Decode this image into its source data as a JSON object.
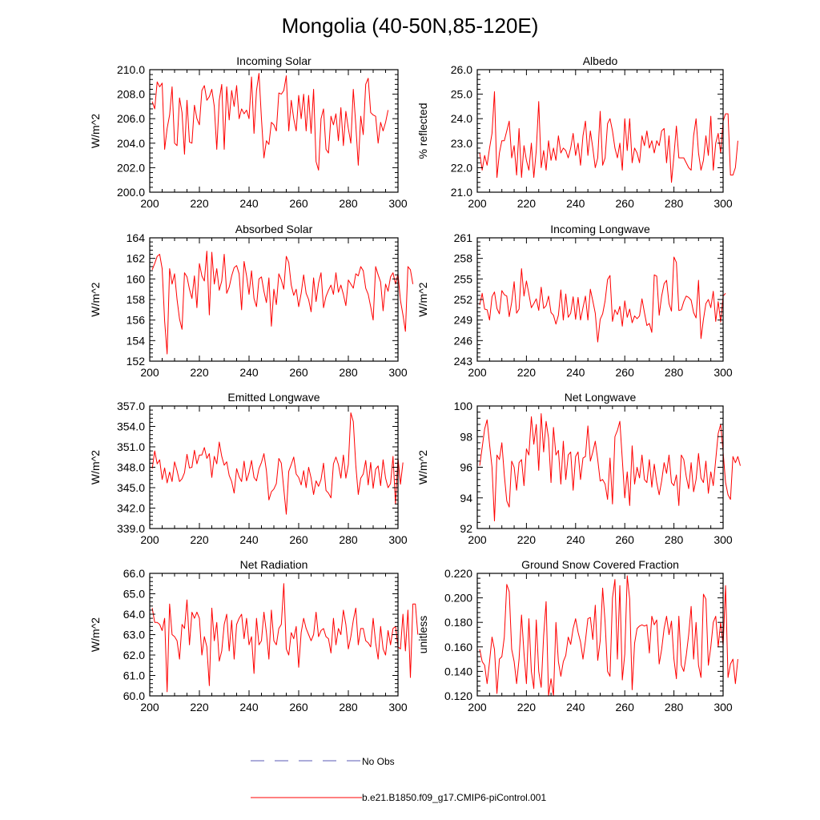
{
  "title": "Mongolia (40-50N,85-120E)",
  "legend": {
    "obs_label": "No Obs",
    "obs_color": "#5a5ab4",
    "model_label": "b.e21.B1850.f09_g17.CMIP6-piControl.001",
    "model_color": "#ff0000"
  },
  "chart_data": [
    {
      "type": "line",
      "title": "Incoming Solar",
      "ylabel": "W/m^2",
      "xlim": [
        200,
        300
      ],
      "ylim": [
        200,
        210
      ],
      "xticks": [
        200,
        220,
        240,
        260,
        280,
        300
      ],
      "yticks": [
        200,
        202,
        204,
        206,
        208,
        210
      ],
      "ytick_labels": [
        "200.0",
        "202.0",
        "204.0",
        "206.0",
        "208.0",
        "210.0"
      ],
      "x_start": 201,
      "values": [
        207.4,
        206.8,
        209.0,
        208.6,
        208.9,
        203.5,
        205.2,
        206.3,
        208.6,
        204.0,
        203.8,
        207.7,
        206.5,
        203.1,
        207.5,
        204.1,
        204.0,
        207.1,
        206.0,
        205.5,
        208.3,
        208.7,
        207.5,
        207.8,
        208.4,
        207.0,
        203.5,
        207.5,
        208.8,
        203.5,
        208.6,
        205.9,
        208.3,
        207.0,
        208.7,
        206.0,
        206.8,
        206.4,
        206.7,
        206.0,
        209.4,
        204.8,
        208.3,
        209.7,
        206.0,
        202.8,
        204.2,
        203.9,
        205.7,
        205.5,
        205.0,
        208.1,
        208.0,
        208.3,
        209.5,
        205.0,
        207.5,
        206.0,
        205.0,
        207.9,
        206.0,
        208.0,
        205.0,
        207.9,
        204.8,
        208.4,
        202.5,
        201.8,
        206.0,
        206.8,
        203.5,
        203.2,
        206.2,
        205.5,
        206.4,
        204.2,
        206.9,
        203.8,
        206.6,
        205.2,
        204.0,
        208.4,
        205.5,
        202.2,
        206.2,
        204.7,
        208.8,
        209.3,
        206.5,
        206.3,
        206.2,
        204.0,
        205.7,
        205.0,
        205.7,
        206.7
      ]
    },
    {
      "type": "line",
      "title": "Albedo",
      "ylabel": "% reflected",
      "xlim": [
        200,
        300
      ],
      "ylim": [
        21,
        26
      ],
      "xticks": [
        200,
        220,
        240,
        260,
        280,
        300
      ],
      "yticks": [
        21,
        22,
        23,
        24,
        25,
        26
      ],
      "ytick_labels": [
        "21.0",
        "22.0",
        "23.0",
        "24.0",
        "25.0",
        "26.0"
      ],
      "x_start": 201,
      "values": [
        22.6,
        21.9,
        22.5,
        22.1,
        22.8,
        23.4,
        25.1,
        21.6,
        22.6,
        23.1,
        23.1,
        23.5,
        23.9,
        22.4,
        22.9,
        21.7,
        23.6,
        21.6,
        22.9,
        22.3,
        21.9,
        23.0,
        21.6,
        22.7,
        24.7,
        22.0,
        22.7,
        21.9,
        23.1,
        22.3,
        22.8,
        22.3,
        23.3,
        22.6,
        22.8,
        22.7,
        22.4,
        22.8,
        23.4,
        22.5,
        23.0,
        22.1,
        23.3,
        23.9,
        22.5,
        23.5,
        22.8,
        22.0,
        22.4,
        24.3,
        22.1,
        22.4,
        23.8,
        24.0,
        23.5,
        22.8,
        22.4,
        23.0,
        21.9,
        24.0,
        22.7,
        24.0,
        22.2,
        22.8,
        22.6,
        22.2,
        23.3,
        22.9,
        23.5,
        22.8,
        23.1,
        22.6,
        23.1,
        22.9,
        23.5,
        23.6,
        22.2,
        23.3,
        21.4,
        22.5,
        23.7,
        22.4,
        22.4,
        22.4,
        22.2,
        22.0,
        21.9,
        23.3,
        24.0,
        22.6,
        21.9,
        22.3,
        23.3,
        22.5,
        24.1,
        21.9,
        23.0,
        23.4,
        22.6,
        23.9,
        24.2,
        24.2,
        21.7,
        21.7,
        22.0,
        23.1
      ]
    },
    {
      "type": "line",
      "title": "Absorbed Solar",
      "ylabel": "W/m^2",
      "xlim": [
        200,
        300
      ],
      "ylim": [
        152,
        164
      ],
      "xticks": [
        200,
        220,
        240,
        260,
        280,
        300
      ],
      "yticks": [
        152,
        154,
        156,
        158,
        160,
        162,
        164
      ],
      "ytick_labels": [
        "152",
        "154",
        "156",
        "158",
        "160",
        "162",
        "164"
      ],
      "x_start": 201,
      "values": [
        160.9,
        161.5,
        162.2,
        162.4,
        161.0,
        155.9,
        152.7,
        161.0,
        159.5,
        160.5,
        158.0,
        156.1,
        155.1,
        160.6,
        160.2,
        159.0,
        158.1,
        160.3,
        157.2,
        161.5,
        160.3,
        159.8,
        162.7,
        156.5,
        162.6,
        159.5,
        161.0,
        158.9,
        159.8,
        162.4,
        158.6,
        159.2,
        160.3,
        161.1,
        161.3,
        160.5,
        157.0,
        161.7,
        160.3,
        158.5,
        160.8,
        158.1,
        157.3,
        160.0,
        160.2,
        158.8,
        157.7,
        160.1,
        155.4,
        159.0,
        157.5,
        160.5,
        159.9,
        159.0,
        162.2,
        161.6,
        159.4,
        158.4,
        159.0,
        157.3,
        158.6,
        160.4,
        158.6,
        158.0,
        156.8,
        160.1,
        157.8,
        159.6,
        160.6,
        157.2,
        158.3,
        158.9,
        159.4,
        158.5,
        160.6,
        158.7,
        159.4,
        158.5,
        157.4,
        159.9,
        159.5,
        159.1,
        160.5,
        160.3,
        161.2,
        160.8,
        159.1,
        158.5,
        157.3,
        156.0,
        161.2,
        160.4,
        159.7,
        156.9,
        159.5,
        158.8,
        160.2,
        160.6,
        159.5,
        160.5,
        157.9,
        156.5,
        154.9,
        161.2,
        160.9,
        159.5
      ]
    },
    {
      "type": "line",
      "title": "Incoming Longwave",
      "ylabel": "W/m^2",
      "xlim": [
        200,
        300
      ],
      "ylim": [
        243,
        261
      ],
      "xticks": [
        200,
        220,
        240,
        260,
        280,
        300
      ],
      "yticks": [
        243,
        246,
        249,
        252,
        255,
        258,
        261
      ],
      "ytick_labels": [
        "243",
        "246",
        "249",
        "252",
        "255",
        "258",
        "261"
      ],
      "x_start": 201,
      "values": [
        251.2,
        252.9,
        250.6,
        250.5,
        249.0,
        252.4,
        253.1,
        250.7,
        249.9,
        253.3,
        252.7,
        252.5,
        249.5,
        251.6,
        254.6,
        250.0,
        250.6,
        256.5,
        252.5,
        254.7,
        252.8,
        250.8,
        251.4,
        252.1,
        250.4,
        253.8,
        250.7,
        251.1,
        252.5,
        250.1,
        249.7,
        248.4,
        249.7,
        253.4,
        249.0,
        252.8,
        249.4,
        250.0,
        252.4,
        249.1,
        252.3,
        249.0,
        250.8,
        252.5,
        249.0,
        253.5,
        251.8,
        250.0,
        245.8,
        249.1,
        249.9,
        251.8,
        254.9,
        255.5,
        248.8,
        250.5,
        249.8,
        251.0,
        248.1,
        251.8,
        249.4,
        250.6,
        248.6,
        249.6,
        249.2,
        249.6,
        252.1,
        250.1,
        248.2,
        248.5,
        247.2,
        255.6,
        255.4,
        249.7,
        252.5,
        254.3,
        254.8,
        251.4,
        250.3,
        258.2,
        257.4,
        250.4,
        250.5,
        251.7,
        252.5,
        252.3,
        251.9,
        250.1,
        249.3,
        254.8,
        246.3,
        249.1,
        251.4,
        252.0,
        250.8,
        253.2,
        248.8,
        251.7,
        248.7,
        252.5,
        252.9
      ]
    },
    {
      "type": "line",
      "title": "Emitted Longwave",
      "ylabel": "W/m^2",
      "xlim": [
        200,
        300
      ],
      "ylim": [
        339,
        357
      ],
      "xticks": [
        200,
        220,
        240,
        260,
        280,
        300
      ],
      "yticks": [
        339,
        342,
        345,
        348,
        351,
        354,
        357
      ],
      "ytick_labels": [
        "339.0",
        "342.0",
        "345.0",
        "348.0",
        "351.0",
        "354.0",
        "357.0"
      ],
      "x_start": 201,
      "values": [
        347.8,
        350.4,
        348.5,
        349.1,
        346.2,
        347.9,
        345.7,
        347.3,
        345.9,
        348.8,
        347.5,
        345.9,
        346.3,
        347.2,
        349.9,
        347.9,
        348.0,
        350.5,
        348.5,
        349.8,
        349.8,
        350.9,
        349.3,
        350.0,
        346.5,
        349.6,
        348.5,
        351.7,
        349.6,
        348.3,
        348.8,
        346.8,
        345.9,
        344.2,
        347.8,
        346.6,
        345.9,
        348.9,
        346.0,
        347.2,
        349.0,
        346.5,
        346.0,
        347.8,
        348.7,
        350.0,
        347.5,
        343.2,
        344.4,
        344.8,
        345.6,
        349.3,
        348.6,
        344.8,
        341.1,
        347.4,
        348.4,
        349.5,
        347.0,
        346.5,
        345.4,
        347.5,
        345.0,
        348.0,
        346.4,
        344.0,
        346.0,
        345.2,
        346.2,
        348.6,
        344.6,
        344.2,
        343.5,
        348.5,
        349.5,
        348.4,
        346.4,
        349.8,
        346.4,
        348.4,
        356.0,
        354.7,
        348.3,
        344.0,
        346.4,
        347.0,
        349.0,
        345.4,
        348.7,
        344.9,
        347.7,
        348.2,
        345.3,
        349.1,
        346.4,
        345.0,
        345.6,
        349.6,
        342.6,
        349.4,
        345.5,
        348.7
      ]
    },
    {
      "type": "line",
      "title": "Net Longwave",
      "ylabel": "W/m^2",
      "xlim": [
        200,
        300
      ],
      "ylim": [
        92,
        100
      ],
      "xticks": [
        200,
        220,
        240,
        260,
        280,
        300
      ],
      "yticks": [
        92,
        94,
        96,
        98,
        100
      ],
      "ytick_labels": [
        "92",
        "94",
        "96",
        "98",
        "100"
      ],
      "x_start": 201,
      "values": [
        96.1,
        97.3,
        98.5,
        99.1,
        97.5,
        96.0,
        92.5,
        96.8,
        96.5,
        97.6,
        95.5,
        93.8,
        93.4,
        96.4,
        96.0,
        94.5,
        96.3,
        96.5,
        94.8,
        97.2,
        96.8,
        99.3,
        97.5,
        98.8,
        95.8,
        99.5,
        97.0,
        99.0,
        97.9,
        95.0,
        98.6,
        96.8,
        97.1,
        94.9,
        97.7,
        95.2,
        96.8,
        97.0,
        94.5,
        96.7,
        97.0,
        95.2,
        96.6,
        96.7,
        98.7,
        96.4,
        97.0,
        97.7,
        96.5,
        95.1,
        95.2,
        94.9,
        93.9,
        96.6,
        93.6,
        98.0,
        98.4,
        99.0,
        96.5,
        94.0,
        95.7,
        93.5,
        97.4,
        94.9,
        96.0,
        95.3,
        96.8,
        95.2,
        95.0,
        96.5,
        94.7,
        96.2,
        95.0,
        94.2,
        95.1,
        96.3,
        95.6,
        96.8,
        95.0,
        94.8,
        95.5,
        93.5,
        96.8,
        96.5,
        95.4,
        94.6,
        96.3,
        94.4,
        95.2,
        96.9,
        95.3,
        95.0,
        96.4,
        94.3,
        95.7,
        94.8,
        96.5,
        98.2,
        98.8,
        97.0,
        95.0,
        94.2,
        93.9,
        96.7,
        96.3,
        96.7,
        96.1
      ]
    },
    {
      "type": "line",
      "title": "Net Radiation",
      "ylabel": "W/m^2",
      "xlim": [
        200,
        300
      ],
      "ylim": [
        60,
        66
      ],
      "xticks": [
        200,
        220,
        240,
        260,
        280,
        300
      ],
      "yticks": [
        60,
        61,
        62,
        63,
        64,
        65,
        66
      ],
      "ytick_labels": [
        "60.0",
        "61.0",
        "62.0",
        "63.0",
        "64.0",
        "65.0",
        "66.0"
      ],
      "x_start": 201,
      "values": [
        64.3,
        63.6,
        63.6,
        63.5,
        63.2,
        63.8,
        60.2,
        64.5,
        63.0,
        62.9,
        62.7,
        61.8,
        63.5,
        63.3,
        64.7,
        62.5,
        64.1,
        63.8,
        64.1,
        63.8,
        62.0,
        62.9,
        62.4,
        60.5,
        64.3,
        62.7,
        63.6,
        61.7,
        62.2,
        63.5,
        64.0,
        62.2,
        63.7,
        61.8,
        63.5,
        63.8,
        64.0,
        62.8,
        63.8,
        62.5,
        62.9,
        61.1,
        63.8,
        62.5,
        62.7,
        64.1,
        63.1,
        61.8,
        64.2,
        62.7,
        62.5,
        63.3,
        63.5,
        65.5,
        62.3,
        62.0,
        63.1,
        62.8,
        63.4,
        61.4,
        63.1,
        63.8,
        63.3,
        63.0,
        62.7,
        63.0,
        64.1,
        62.9,
        63.2,
        63.3,
        62.9,
        62.8,
        62.1,
        63.8,
        62.5,
        63.3,
        63.0,
        64.2,
        63.5,
        62.3,
        62.9,
        63.7,
        64.3,
        62.5,
        63.3,
        63.3,
        62.7,
        62.6,
        62.4,
        63.8,
        62.6,
        61.8,
        63.4,
        62.3,
        62.0,
        63.2,
        62.5,
        63.3,
        63.4,
        62.4,
        62.3,
        64.0,
        62.2,
        64.2,
        60.9,
        64.5,
        64.5,
        63.0
      ]
    },
    {
      "type": "line",
      "title": "Ground Snow Covered Fraction",
      "ylabel": "unitless",
      "xlim": [
        200,
        300
      ],
      "ylim": [
        0.12,
        0.22
      ],
      "xticks": [
        200,
        220,
        240,
        260,
        280,
        300
      ],
      "yticks": [
        0.12,
        0.14,
        0.16,
        0.18,
        0.2,
        0.22
      ],
      "ytick_labels": [
        "0.120",
        "0.140",
        "0.160",
        "0.180",
        "0.200",
        "0.220"
      ],
      "x_start": 201,
      "values": [
        0.158,
        0.148,
        0.145,
        0.13,
        0.148,
        0.168,
        0.158,
        0.122,
        0.15,
        0.152,
        0.168,
        0.211,
        0.205,
        0.158,
        0.148,
        0.13,
        0.15,
        0.186,
        0.155,
        0.13,
        0.183,
        0.14,
        0.126,
        0.182,
        0.14,
        0.127,
        0.169,
        0.197,
        0.12,
        0.134,
        0.12,
        0.18,
        0.148,
        0.136,
        0.148,
        0.153,
        0.168,
        0.162,
        0.175,
        0.183,
        0.172,
        0.164,
        0.15,
        0.165,
        0.183,
        0.184,
        0.166,
        0.194,
        0.149,
        0.165,
        0.208,
        0.18,
        0.14,
        0.136,
        0.2,
        0.215,
        0.15,
        0.21,
        0.133,
        0.154,
        0.218,
        0.199,
        0.125,
        0.163,
        0.175,
        0.177,
        0.178,
        0.177,
        0.178,
        0.155,
        0.185,
        0.178,
        0.182,
        0.146,
        0.158,
        0.175,
        0.185,
        0.17,
        0.181,
        0.15,
        0.134,
        0.185,
        0.145,
        0.14,
        0.153,
        0.17,
        0.193,
        0.15,
        0.18,
        0.145,
        0.135,
        0.203,
        0.199,
        0.145,
        0.16,
        0.18,
        0.185,
        0.16,
        0.18,
        0.161,
        0.21,
        0.135,
        0.146,
        0.15,
        0.13,
        0.15
      ]
    }
  ]
}
